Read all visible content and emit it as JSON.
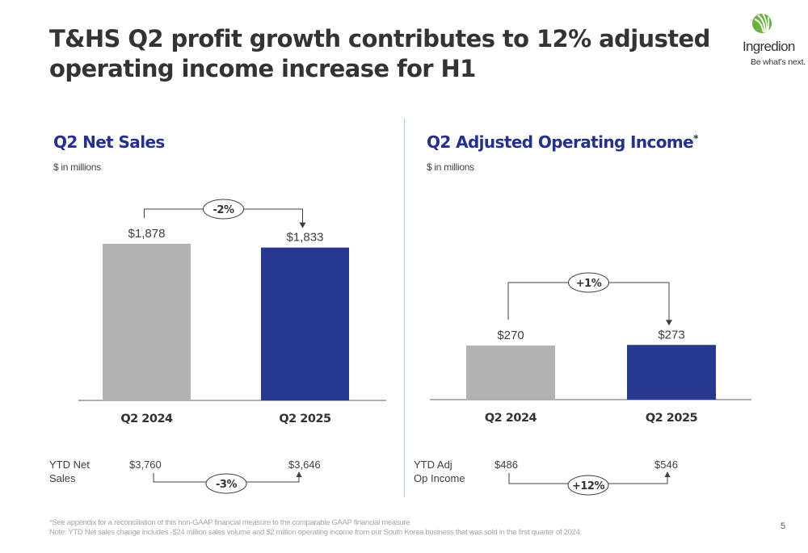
{
  "slide": {
    "title": "T&HS Q2 profit growth contributes to 12% adjusted operating income increase for H1",
    "page_number": "5",
    "logo": {
      "name": "Ingredion",
      "tagline": "Be what’s next.",
      "icon": "leaf-sprout-icon",
      "color": "#6ab23e"
    },
    "footnotes": [
      "*See appendix for a reconciliation of this non-GAAP financial measure to the comparable GAAP financial measure",
      "Note: YTD Net sales change includes -$24 million sales volume and $2 million operating  income from our South Korea business that was sold in the first quarter of 2024."
    ],
    "colors": {
      "prior_year": "#b2b3b2",
      "current_year": "#273891",
      "title_blue": "#233090",
      "divider": "#a9d3f2"
    }
  },
  "chart_data": [
    {
      "type": "bar",
      "title": "Q2 Net Sales",
      "subtitle": "$ in millions",
      "categories": [
        "Q2 2024",
        "Q2 2025"
      ],
      "values": [
        1878,
        1833
      ],
      "value_labels": [
        "$1,878",
        "$1,833"
      ],
      "change_label": "-2%",
      "ylim": [
        0,
        2000
      ],
      "grid": false,
      "ytd": {
        "label": "YTD Net Sales",
        "values": [
          "$3,760",
          "$3,646"
        ],
        "change_label": "-3%"
      }
    },
    {
      "type": "bar",
      "title": "Q2 Adjusted Operating Income",
      "title_marker": "*",
      "subtitle": "$ in millions",
      "categories": [
        "Q2 2024",
        "Q2 2025"
      ],
      "values": [
        270,
        273
      ],
      "value_labels": [
        "$270",
        "$273"
      ],
      "change_label": "+1%",
      "ylim": [
        0,
        700
      ],
      "grid": false,
      "ytd": {
        "label": "YTD Adj Op Income",
        "values": [
          "$486",
          "$546"
        ],
        "change_label": "+12%"
      }
    }
  ]
}
